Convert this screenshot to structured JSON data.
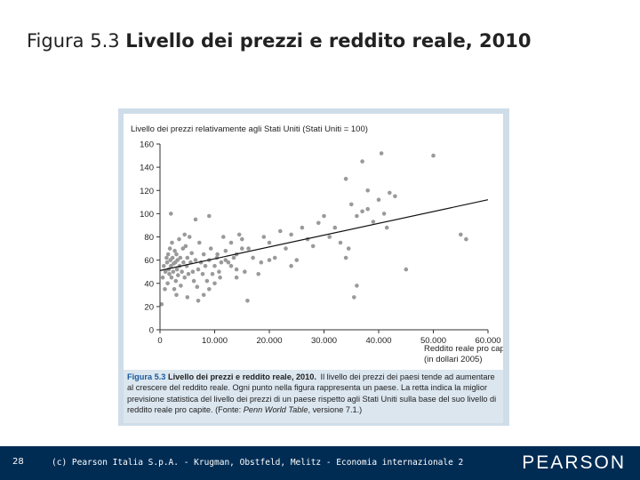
{
  "slide": {
    "title_prefix": "Figura 5.3",
    "title_main": "Livello dei prezzi e reddito reale, 2010"
  },
  "chart_data": {
    "type": "scatter",
    "ylabel": "Livello dei prezzi relativamente agli Stati Uniti (Stati Uniti = 100)",
    "xlabel_line1": "Reddito reale pro capite",
    "xlabel_line2": "(in dollari 2005)",
    "xlim": [
      0,
      60000
    ],
    "ylim": [
      0,
      160
    ],
    "x_ticks": [
      0,
      10000,
      20000,
      30000,
      40000,
      50000,
      60000
    ],
    "x_tick_labels": [
      "0",
      "10.000",
      "20.000",
      "30.000",
      "40.000",
      "50.000",
      "60.000"
    ],
    "y_ticks": [
      0,
      20,
      40,
      60,
      80,
      100,
      120,
      140,
      160
    ],
    "y_tick_labels": [
      "0",
      "20",
      "40",
      "60",
      "80",
      "100",
      "120",
      "140",
      "160"
    ],
    "trend_line": {
      "x": [
        0,
        60000
      ],
      "y": [
        51,
        112
      ]
    },
    "points": [
      [
        300,
        22
      ],
      [
        500,
        45
      ],
      [
        700,
        55
      ],
      [
        900,
        35
      ],
      [
        1000,
        50
      ],
      [
        1200,
        62
      ],
      [
        1300,
        58
      ],
      [
        1400,
        40
      ],
      [
        1500,
        65
      ],
      [
        1600,
        52
      ],
      [
        1700,
        48
      ],
      [
        1800,
        70
      ],
      [
        1900,
        60
      ],
      [
        2000,
        55
      ],
      [
        2100,
        45
      ],
      [
        2200,
        75
      ],
      [
        2300,
        62
      ],
      [
        2400,
        50
      ],
      [
        2500,
        57
      ],
      [
        2600,
        35
      ],
      [
        2700,
        68
      ],
      [
        2800,
        58
      ],
      [
        2900,
        42
      ],
      [
        3000,
        65
      ],
      [
        3100,
        52
      ],
      [
        3200,
        60
      ],
      [
        3300,
        47
      ],
      [
        3500,
        78
      ],
      [
        3600,
        55
      ],
      [
        3700,
        62
      ],
      [
        3800,
        38
      ],
      [
        4000,
        50
      ],
      [
        4200,
        70
      ],
      [
        4300,
        58
      ],
      [
        4500,
        45
      ],
      [
        4700,
        72
      ],
      [
        4900,
        55
      ],
      [
        5000,
        62
      ],
      [
        5200,
        48
      ],
      [
        5400,
        80
      ],
      [
        5600,
        58
      ],
      [
        5800,
        66
      ],
      [
        6000,
        50
      ],
      [
        6200,
        42
      ],
      [
        6500,
        60
      ],
      [
        6800,
        37
      ],
      [
        7000,
        52
      ],
      [
        7200,
        75
      ],
      [
        7500,
        58
      ],
      [
        7800,
        48
      ],
      [
        8000,
        65
      ],
      [
        8300,
        55
      ],
      [
        8600,
        42
      ],
      [
        9000,
        60
      ],
      [
        9300,
        70
      ],
      [
        9600,
        48
      ],
      [
        10000,
        55
      ],
      [
        10400,
        62
      ],
      [
        10800,
        50
      ],
      [
        11200,
        58
      ],
      [
        11600,
        80
      ],
      [
        12000,
        68
      ],
      [
        12500,
        58
      ],
      [
        13000,
        75
      ],
      [
        13500,
        62
      ],
      [
        14000,
        52
      ],
      [
        14500,
        82
      ],
      [
        15000,
        78
      ],
      [
        15500,
        50
      ],
      [
        16200,
        70
      ],
      [
        17000,
        62
      ],
      [
        18000,
        48
      ],
      [
        18500,
        58
      ],
      [
        19000,
        80
      ],
      [
        20000,
        75
      ],
      [
        21000,
        62
      ],
      [
        22000,
        85
      ],
      [
        23000,
        70
      ],
      [
        24000,
        82
      ],
      [
        25000,
        60
      ],
      [
        26000,
        88
      ],
      [
        27000,
        78
      ],
      [
        28000,
        72
      ],
      [
        29000,
        92
      ],
      [
        30000,
        98
      ],
      [
        31000,
        80
      ],
      [
        32000,
        88
      ],
      [
        33000,
        75
      ],
      [
        34000,
        62
      ],
      [
        35000,
        108
      ],
      [
        36000,
        98
      ],
      [
        37000,
        102
      ],
      [
        38000,
        120
      ],
      [
        39000,
        93
      ],
      [
        40000,
        112
      ],
      [
        41000,
        100
      ],
      [
        42000,
        118
      ],
      [
        43000,
        115
      ],
      [
        45000,
        52
      ],
      [
        50000,
        150
      ],
      [
        55000,
        82
      ],
      [
        56000,
        78
      ],
      [
        37000,
        145
      ],
      [
        34000,
        130
      ],
      [
        34500,
        70
      ],
      [
        35500,
        28
      ],
      [
        36000,
        38
      ],
      [
        38000,
        104
      ],
      [
        40500,
        152
      ],
      [
        41500,
        88
      ],
      [
        2000,
        100
      ],
      [
        4500,
        82
      ],
      [
        6500,
        95
      ],
      [
        9000,
        98
      ],
      [
        10500,
        65
      ],
      [
        11000,
        45
      ],
      [
        12000,
        60
      ],
      [
        13000,
        55
      ],
      [
        14000,
        65
      ],
      [
        15000,
        70
      ],
      [
        3000,
        30
      ],
      [
        5000,
        28
      ],
      [
        7000,
        25
      ],
      [
        8000,
        30
      ],
      [
        9000,
        35
      ],
      [
        10000,
        40
      ],
      [
        14000,
        45
      ],
      [
        20000,
        60
      ],
      [
        24000,
        55
      ],
      [
        16000,
        25
      ]
    ]
  },
  "caption": {
    "fig_num": "Figura 5.3",
    "fig_title": "Livello dei prezzi e reddito reale, 2010.",
    "body": "Il livello dei prezzi dei paesi tende ad aumentare al crescere del reddito reale. Ogni punto nella figura rappresenta un paese. La retta indica la miglior previsione statistica del livello dei prezzi di un paese rispetto agli Stati Uniti sulla base del suo livello di reddito reale pro capite.",
    "source_prefix": "(Fonte:",
    "source_name": "Penn World Table",
    "source_suffix": ", versione 7.1.)"
  },
  "footer": {
    "page_number": "28",
    "copyright": "(c) Pearson Italia S.p.A. - Krugman, Obstfeld, Melitz - Economia internazionale 2",
    "brand": "PEARSON"
  },
  "colors": {
    "footer_bg": "#002c54",
    "panel_bg": "#cfdde9",
    "caption_bg": "#dbe6ef",
    "figure_label": "#1a5a9a",
    "point_color": "#9a9a9a",
    "line_color": "#111111"
  }
}
